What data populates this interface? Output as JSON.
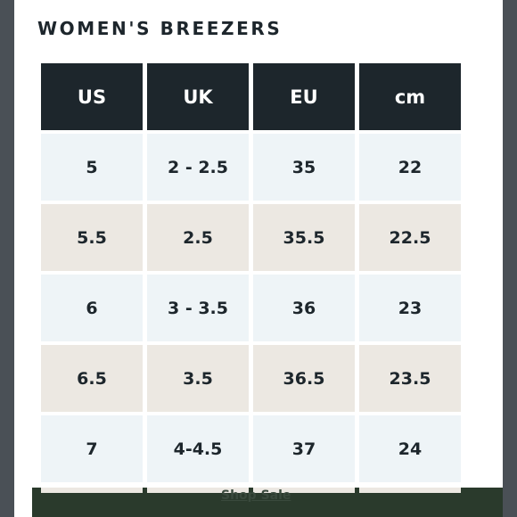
{
  "title": "WOMEN'S BREEZERS",
  "table": {
    "headers": [
      "US",
      "UK",
      "EU",
      "cm"
    ],
    "rows": [
      [
        "5",
        "2 - 2.5",
        "35",
        "22"
      ],
      [
        "5.5",
        "2.5",
        "35.5",
        "22.5"
      ],
      [
        "6",
        "3 - 3.5",
        "36",
        "23"
      ],
      [
        "6.5",
        "3.5",
        "36.5",
        "23.5"
      ],
      [
        "7",
        "4-4.5",
        "37",
        "24"
      ]
    ]
  },
  "footer": {
    "link_label": "Shop Sale"
  },
  "colors": {
    "header_bg": "#1d262c",
    "row_light": "#eef4f7",
    "row_beige": "#ece8e2",
    "footer_bg": "#2a3a2c"
  }
}
